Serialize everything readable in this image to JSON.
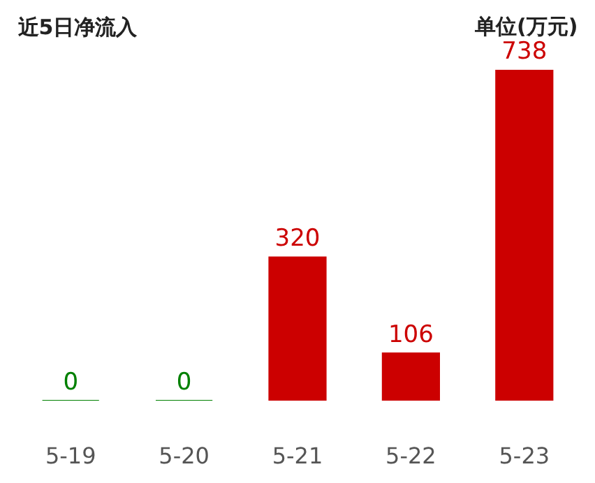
{
  "chart_data": {
    "type": "bar",
    "title": "近5日净流入",
    "annotations": [
      "单位(万元)"
    ],
    "categories": [
      "5-19",
      "5-20",
      "5-21",
      "5-22",
      "5-23"
    ],
    "values": [
      0,
      0,
      320,
      106,
      738
    ],
    "colors": [
      "#008000",
      "#008000",
      "#cc0000",
      "#cc0000",
      "#cc0000"
    ],
    "data_labels": true,
    "legend": false
  }
}
